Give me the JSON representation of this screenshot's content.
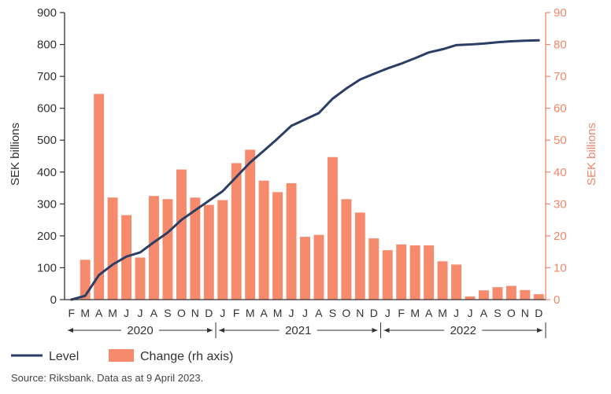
{
  "chart_data": {
    "type": "bar",
    "ylabel": "SEK billions",
    "y2label": "SEK billions",
    "ylim": [
      0,
      900
    ],
    "y2lim": [
      0,
      90
    ],
    "y_ticks": [
      "0",
      "100",
      "200",
      "300",
      "400",
      "500",
      "600",
      "700",
      "800",
      "900"
    ],
    "y2_ticks": [
      "0",
      "10",
      "20",
      "30",
      "40",
      "50",
      "60",
      "70",
      "80",
      "90"
    ],
    "categories": [
      "F",
      "M",
      "A",
      "M",
      "J",
      "J",
      "A",
      "S",
      "O",
      "N",
      "D",
      "J",
      "F",
      "M",
      "A",
      "M",
      "J",
      "J",
      "A",
      "S",
      "O",
      "N",
      "D",
      "J",
      "F",
      "M",
      "A",
      "M",
      "J",
      "J",
      "A",
      "S",
      "O",
      "N",
      "D"
    ],
    "years": [
      {
        "label": "2020",
        "first": 0,
        "last": 10
      },
      {
        "label": "2021",
        "first": 11,
        "last": 22
      },
      {
        "label": "2022",
        "first": 23,
        "last": 34
      }
    ],
    "grid": false,
    "legend_position": "bottom-left",
    "series": [
      {
        "name": "Level",
        "type": "line",
        "axis": "left",
        "color": "#2b3e63",
        "values": [
          0,
          12,
          77,
          110,
          135,
          148,
          180,
          210,
          250,
          280,
          310,
          340,
          385,
          430,
          467,
          505,
          545,
          565,
          585,
          630,
          662,
          690,
          708,
          725,
          740,
          757,
          775,
          785,
          798,
          800,
          803,
          807,
          810,
          812,
          813
        ]
      },
      {
        "name": "Change (rh axis)",
        "type": "bar",
        "axis": "right",
        "color": "#f58a6c",
        "values": [
          null,
          12.5,
          64.5,
          32.0,
          26.5,
          13.2,
          32.5,
          31.5,
          40.8,
          32.0,
          29.7,
          31.2,
          42.8,
          47.0,
          37.3,
          33.7,
          36.5,
          19.7,
          20.3,
          44.7,
          31.5,
          27.3,
          19.2,
          15.5,
          17.3,
          17.0,
          17.0,
          12.0,
          11.0,
          1.0,
          2.9,
          3.9,
          4.3,
          3.0,
          1.7
        ]
      }
    ]
  },
  "source": "Source: Riksbank. Data as at 9 April 2023."
}
